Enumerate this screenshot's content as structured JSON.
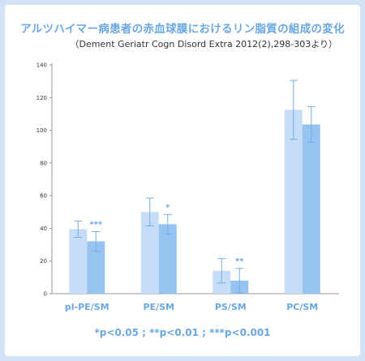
{
  "title": "アルツハイマー病患者の赤血球膜におけるリン脂質の組成の変化",
  "citation": "（Dement Geriatr Cogn Disord Extra 2012(2),298-303より）",
  "footnote": "*p<0.05 ; **p<0.01 ; ***p<0.001",
  "colors": {
    "background": "#d2e3f7",
    "series_control": "#c5ddf6",
    "series_ad": "#96c3ef",
    "accent_text": "#6aa7e3",
    "error_bar": "#74aee8"
  },
  "chart_data": {
    "type": "bar",
    "title": "",
    "xlabel": "",
    "ylabel": "",
    "ylim": [
      0,
      140
    ],
    "yticks": [
      0,
      20,
      40,
      60,
      80,
      100,
      120,
      140
    ],
    "grid": false,
    "legend": "none",
    "categories": [
      "pl-PE/SM",
      "PE/SM",
      "PS/SM",
      "PC/SM"
    ],
    "series": [
      {
        "values": [
          39.5,
          50,
          14,
          112.5
        ],
        "errors": [
          5,
          8.5,
          7.5,
          18
        ]
      },
      {
        "values": [
          32,
          42.5,
          8,
          103.5
        ],
        "errors": [
          6,
          6,
          7.5,
          11
        ]
      }
    ],
    "significance": [
      "***",
      "*",
      "**",
      ""
    ]
  }
}
